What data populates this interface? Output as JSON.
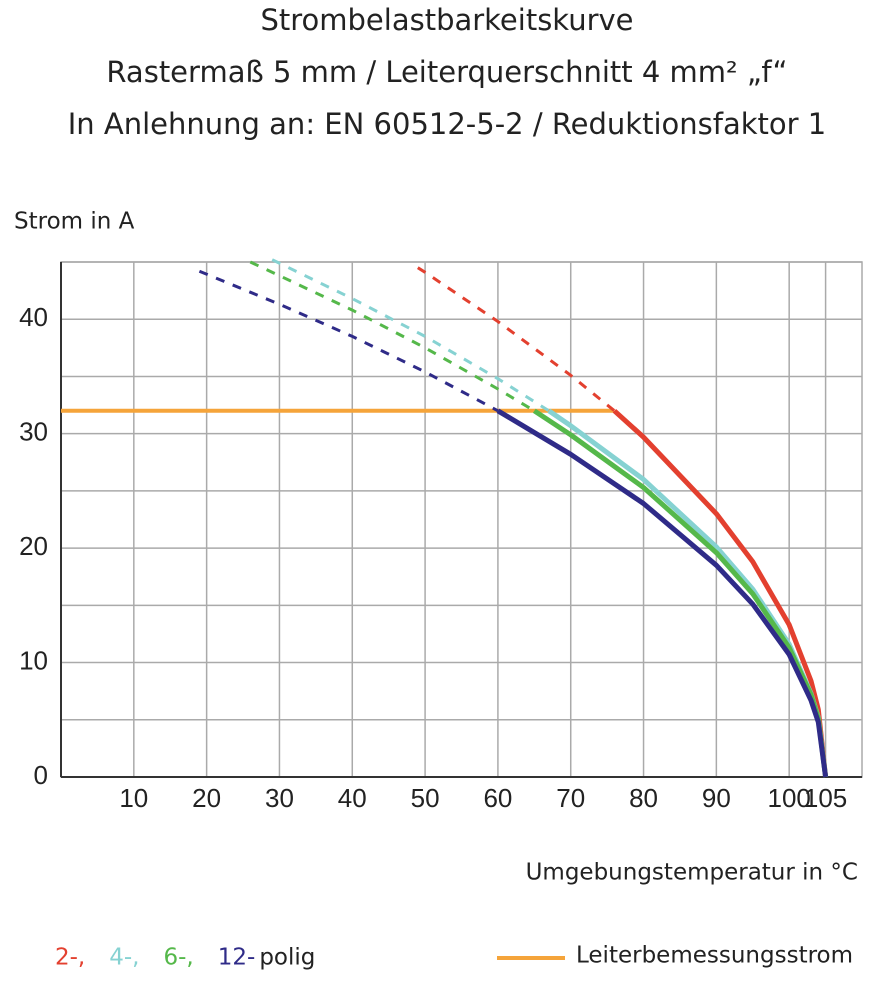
{
  "chart_data": {
    "type": "line",
    "title": [
      "Strombelastbarkeitskurve",
      "Rastermaß 5 mm / Leiterquerschnitt 4 mm² „f“",
      "In Anlehnung an: EN 60512-5-2 / Reduktionsfaktor 1"
    ],
    "y_label": "Strom in A",
    "x_label": "Umgebungstemperatur in °C",
    "xlim": [
      0,
      110
    ],
    "ylim": [
      0,
      45
    ],
    "xticks": [
      10,
      20,
      30,
      40,
      50,
      60,
      70,
      80,
      90,
      100,
      105
    ],
    "yticks": [
      0,
      10,
      20,
      30,
      40
    ],
    "y_minor_grid": [
      5,
      15,
      25,
      35,
      45
    ],
    "grid": true,
    "series": [
      {
        "name": "2-,",
        "color": "#e3402f",
        "dashed_x": [
          49,
          50,
          60,
          70,
          76
        ],
        "dashed_values": [
          44.5,
          44.1,
          39.8,
          35.1,
          32
        ],
        "x": [
          76,
          80,
          90,
          95,
          100,
          103,
          104,
          105
        ],
        "values": [
          32,
          29.7,
          23.0,
          18.8,
          13.3,
          8.4,
          5.9,
          0
        ]
      },
      {
        "name": "4-,",
        "color": "#86d2d2",
        "dashed_x": [
          29,
          40,
          50,
          60,
          67
        ],
        "dashed_values": [
          45.2,
          41.8,
          38.5,
          34.8,
          32
        ],
        "x": [
          67,
          70,
          80,
          90,
          95,
          100,
          103,
          104,
          105
        ],
        "values": [
          32,
          30.7,
          26.0,
          20.1,
          16.4,
          11.6,
          7.3,
          5.2,
          0
        ]
      },
      {
        "name": "6-,",
        "color": "#55b84a",
        "dashed_x": [
          26,
          30,
          40,
          50,
          60,
          65
        ],
        "dashed_values": [
          45.0,
          43.8,
          40.8,
          37.5,
          33.9,
          32
        ],
        "x": [
          65,
          70,
          80,
          90,
          95,
          100,
          103,
          104,
          105
        ],
        "values": [
          32,
          29.9,
          25.3,
          19.6,
          16.0,
          11.3,
          7.2,
          5.1,
          0
        ]
      },
      {
        "name": "12-",
        "color": "#2f2b88",
        "dashed_x": [
          19,
          30,
          40,
          50,
          60
        ],
        "dashed_values": [
          44.2,
          41.3,
          38.5,
          35.4,
          32
        ],
        "x": [
          60,
          70,
          80,
          90,
          95,
          100,
          103,
          104,
          105
        ],
        "values": [
          32,
          28.2,
          23.9,
          18.5,
          15.1,
          10.7,
          6.7,
          4.8,
          0
        ]
      }
    ],
    "legend_suffix": "polig",
    "reference": {
      "name": "Leiterbemessungsstrom",
      "color": "#f5a43a",
      "x": [
        0,
        76
      ],
      "value": 32
    }
  }
}
